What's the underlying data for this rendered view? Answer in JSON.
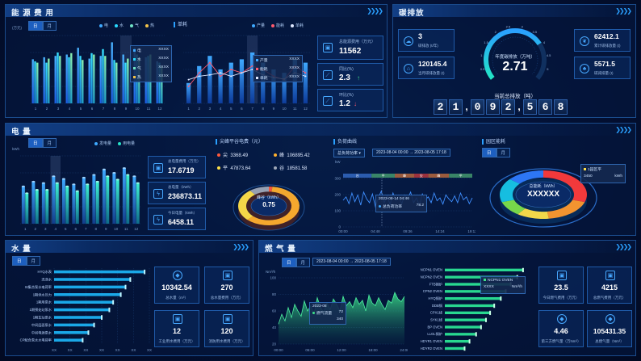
{
  "energy": {
    "title": "能 源 费 用",
    "toggle": [
      "日",
      "月"
    ],
    "sub_title": "费用",
    "y_unit": "(万元)",
    "legend": [
      {
        "label": "电",
        "color": "#3fa9ff"
      },
      {
        "label": "水",
        "color": "#29d9ff"
      },
      {
        "label": "气",
        "color": "#6fe3c6"
      },
      {
        "label": "热",
        "color": "#f3c34a"
      }
    ],
    "tooltip": [
      {
        "label": "电",
        "value": "XXXX"
      },
      {
        "label": "水",
        "value": "XXXX"
      },
      {
        "label": "气",
        "value": "XXXX"
      },
      {
        "label": "热",
        "value": "XXXX"
      }
    ],
    "chart_data": {
      "type": "bar",
      "categories": [
        "1",
        "2",
        "3",
        "4",
        "5",
        "6",
        "7",
        "8",
        "9",
        "10",
        "11",
        "12"
      ],
      "series": [
        {
          "name": "电",
          "values": [
            0.65,
            0.68,
            0.7,
            0.72,
            0.82,
            0.66,
            0.7,
            0.9,
            0.72,
            0.82,
            0.68,
            0.62
          ]
        },
        {
          "name": "水",
          "values": [
            0.62,
            0.6,
            0.75,
            0.68,
            0.7,
            0.74,
            0.8,
            0.64,
            0.6,
            0.72,
            0.7,
            0.6
          ]
        },
        {
          "name": "气",
          "values": [
            0.6,
            0.66,
            0.7,
            0.74,
            0.64,
            0.72,
            0.7,
            0.6,
            0.66,
            0.68,
            0.72,
            0.55
          ]
        }
      ],
      "ylim": [
        0,
        1
      ]
    }
  },
  "unit_consumption": {
    "sub_title": "单耗",
    "legend": [
      {
        "label": "产量",
        "color": "#3fa9ff"
      },
      {
        "label": "能耗",
        "color": "#ff5a6e"
      },
      {
        "label": "单耗",
        "color": "#dfe8ff"
      }
    ],
    "tooltip": [
      {
        "label": "产量",
        "value": "XXXX"
      },
      {
        "label": "能耗",
        "value": "XXXX"
      },
      {
        "label": "单耗",
        "value": "XXXX"
      }
    ],
    "chart_data": {
      "type": "bar",
      "categories": [
        "1",
        "2",
        "3",
        "4",
        "5",
        "6",
        "7",
        "8",
        "9",
        "10",
        "11",
        "12"
      ],
      "series": [
        {
          "name": "产量",
          "values": [
            0.3,
            0.55,
            0.7,
            0.5,
            0.6,
            0.65,
            0.75,
            0.6,
            0.5,
            0.45,
            0.65,
            0.6
          ]
        },
        {
          "name": "能耗",
          "values": [
            0.25,
            0.45,
            0.6,
            0.4,
            0.5,
            0.45,
            0.55,
            0.5,
            0.4,
            0.35,
            0.55,
            0.45
          ]
        },
        {
          "name": "单耗",
          "values": [
            0.35,
            0.4,
            0.42,
            0.45,
            0.4,
            0.45,
            0.5,
            0.42,
            0.38,
            0.36,
            0.45,
            0.4
          ]
        }
      ],
      "ylim": [
        0,
        1
      ]
    }
  },
  "energy_cards": [
    {
      "label": "总能源费用（万元）",
      "value": "11562",
      "icon": "wallet-icon"
    },
    {
      "label": "同比(%)",
      "value": "2.3",
      "trend": "↑",
      "icon": "trend-icon"
    },
    {
      "label": "环比(%)",
      "value": "1.2",
      "trend": "↓",
      "icon": "trend-icon"
    }
  ],
  "carbon": {
    "title": "碳排放",
    "left_cards": [
      {
        "value": "3",
        "label": "碳排放 (t/年)",
        "icon": "cloud-icon"
      },
      {
        "value": "120145.4",
        "label": "当月碳排放量 (t)",
        "icon": "factory-icon"
      }
    ],
    "right_cards": [
      {
        "value": "62412.1",
        "label": "累计碳排放量 (t)",
        "icon": "leaf-icon"
      },
      {
        "value": "5571.5",
        "label": "碳减排量 (t)",
        "icon": "tree-icon"
      }
    ],
    "gauge_label": "年度碳排放（万吨）",
    "gauge_value": "2.71",
    "gauge_fraction": 0.72,
    "gauge_ticks": [
      "0.5",
      "1",
      "1.5",
      "2",
      "2.5",
      "3",
      "3.5",
      "4",
      "4.5",
      "5"
    ],
    "total_label": "当前总排放（吨）",
    "digits": [
      "2",
      "1",
      ",",
      "0",
      "9",
      "2",
      ",",
      "5",
      "6",
      "8"
    ]
  },
  "power": {
    "title": "电 量",
    "toggle": [
      "日",
      "月"
    ],
    "y_unit": "kWh",
    "legend": [
      {
        "label": "发电量",
        "color": "#3fa9ff"
      },
      {
        "label": "用电量",
        "color": "#26e0c6"
      }
    ],
    "chart_data": {
      "type": "bar",
      "categories": [
        "1",
        "2",
        "3",
        "4",
        "5",
        "6",
        "7",
        "8",
        "9",
        "10",
        "11",
        "12"
      ],
      "series": [
        {
          "name": "发电量",
          "values": [
            0.55,
            0.62,
            0.6,
            0.7,
            0.66,
            0.58,
            0.68,
            0.72,
            0.8,
            0.75,
            0.82,
            0.7
          ]
        },
        {
          "name": "用电量",
          "values": [
            0.45,
            0.5,
            0.5,
            0.6,
            0.55,
            0.48,
            0.58,
            0.62,
            0.7,
            0.65,
            0.72,
            0.6
          ]
        }
      ],
      "ylim": [
        0,
        1
      ]
    },
    "cards": [
      {
        "label": "总电量费用（万元）",
        "value": "17.6719",
        "icon": "wallet-icon"
      },
      {
        "label": "总电量（kWh）",
        "value": "236873.11",
        "icon": "bolt-icon"
      },
      {
        "label": "今日电量（kWh）",
        "value": "6458.11",
        "icon": "bolt-icon"
      }
    ]
  },
  "peak_valley": {
    "title": "尖峰平谷电费（元）",
    "items": [
      {
        "label": "尖",
        "value": "3368.49",
        "color": "#ff5a3c"
      },
      {
        "label": "峰",
        "value": "106895.42",
        "color": "#ffb02e"
      },
      {
        "label": "平",
        "value": "47873.64",
        "color": "#ffe14a"
      },
      {
        "label": "谷",
        "value": "18581.58",
        "color": "#9fa8b8"
      }
    ],
    "donut_label": "峰谷（kWh）",
    "donut_value": "0.75",
    "chart_data": {
      "type": "pie",
      "categories": [
        "尖",
        "峰",
        "平",
        "谷"
      ],
      "values": [
        3368.49,
        106895.42,
        47873.64,
        18581.58
      ]
    }
  },
  "load_curve": {
    "title": "负荷曲线",
    "select": "总负荷功率",
    "date_from": "2023-08-04 00:00",
    "date_to": "2023-08-05 17:18",
    "y_unit": "kW",
    "y_ticks": [
      "300",
      "200",
      "100",
      "0"
    ],
    "x_ticks": [
      "00:00",
      "04:48",
      "09:36",
      "14:24",
      "19:12"
    ],
    "band_labels": [
      "谷",
      "平",
      "峰",
      "尖",
      "峰",
      "平"
    ],
    "tooltip_time": "2023-08-14  04:46",
    "tooltip_label": "总负荷功率",
    "tooltip_value": "78.2",
    "chart_data": {
      "type": "line",
      "series": [
        {
          "name": "总负荷功率",
          "values": [
            0.55,
            0.62,
            0.48,
            0.7,
            0.52,
            0.66,
            0.45,
            0.72,
            0.58,
            0.5,
            0.68,
            0.42,
            0.6,
            0.74,
            0.5,
            0.64,
            0.46,
            0.7,
            0.55,
            0.62,
            0.48,
            0.66,
            0.58,
            0.72,
            0.5,
            0.6,
            0.44,
            0.68,
            0.56,
            0.62,
            0.5,
            0.7,
            0.54,
            0.6,
            0.47,
            0.66,
            0.58,
            0.52,
            0.64,
            0.5,
            0.7,
            0.56,
            0.62,
            0.48,
            0.6
          ]
        }
      ],
      "ylim": [
        0,
        1
      ]
    }
  },
  "park_energy": {
    "title": "园区能耗",
    "toggle": [
      "日",
      "月"
    ],
    "center_label": "总能耗（kWh）",
    "center_value": "XXXXXX",
    "tooltip_label": "1园区平",
    "tooltip_value": "3450",
    "tooltip_unit": "kWh",
    "chart_data": {
      "type": "pie",
      "categories": [
        "A",
        "B",
        "C",
        "D",
        "E",
        "F"
      ],
      "values": [
        30,
        18,
        12,
        10,
        16,
        14
      ]
    },
    "colors": [
      "#ff3b3b",
      "#ff9a2e",
      "#ffe14a",
      "#7ee04a",
      "#17c6e8",
      "#2f7bff"
    ]
  },
  "water": {
    "title": "水 量",
    "toggle": [
      "日",
      "月"
    ],
    "chart_data": {
      "type": "bar",
      "categories": [
        "HYQ水表",
        "洗涤水",
        "SI集合泵水电荷率",
        "1期供水压力",
        "1期用泵水",
        "1期预处站泵水",
        "1期车站泵水",
        "中间层面泵水",
        "中间电源泵水",
        "CP配合泵水水电荷率"
      ],
      "values": [
        0.95,
        0.8,
        0.75,
        0.7,
        0.62,
        0.58,
        0.5,
        0.42,
        0.36,
        0.3
      ]
    },
    "x_ticks": [
      "XX",
      "XX",
      "XX",
      "XX",
      "XX",
      "XX",
      "XX"
    ],
    "cards": [
      {
        "value": "10342.54",
        "label": "总水量（m³）",
        "icon": "drop-icon"
      },
      {
        "value": "270",
        "label": "总水量费用（万元）",
        "icon": "wallet-icon"
      },
      {
        "value": "12",
        "label": "工业用水费用（万元）",
        "icon": "wallet-icon"
      },
      {
        "value": "120",
        "label": "消防用水费用（万元）",
        "icon": "wallet-icon"
      }
    ]
  },
  "gas": {
    "title": "燃 气 量",
    "toggle": [
      "日",
      "月"
    ],
    "date_from": "2023-08-04 00:00",
    "date_to": "2023-08-05 17:18",
    "y_unit": "Nm³/h",
    "y_ticks": [
      "100",
      "80",
      "60",
      "40",
      "20"
    ],
    "x_ticks": [
      "00:00",
      "06:00",
      "12:00",
      "18:00",
      "24:00"
    ],
    "tooltip_time": "2023-08",
    "tooltip_label": "燃气流量",
    "tooltip_value": "72",
    "tooltip_value2": "340",
    "chart_data": {
      "type": "area",
      "series": [
        {
          "name": "燃气流量",
          "values": [
            0.3,
            0.45,
            0.35,
            0.55,
            0.4,
            0.6,
            0.5,
            0.42,
            0.65,
            0.5,
            0.58,
            0.45,
            0.7,
            0.55,
            0.48,
            0.62,
            0.52,
            0.68,
            0.6,
            0.5,
            0.72,
            0.58,
            0.64,
            0.55,
            0.7,
            0.6,
            0.66,
            0.5,
            0.74,
            0.62,
            0.58,
            0.7,
            0.6,
            0.52,
            0.66,
            0.62,
            0.78,
            0.68,
            0.64,
            0.72
          ]
        }
      ],
      "ylim": [
        0,
        1
      ]
    },
    "bar_tooltip_label": "NCPN1 OVEN",
    "bar_tooltip_value": "XXXX",
    "bar_tooltip_unit": "Nm³/h",
    "bar_data": {
      "type": "bar",
      "categories": [
        "NCPN1 OVEN",
        "NCPN2 OVEN",
        "FTB锅炉",
        "CPN2 OVEN",
        "HYQ锅炉",
        "DDB锅",
        "CPX1线",
        "SYK1线",
        "BP OVEN",
        "LLGL锅炉",
        "HDYR1 OVEN",
        "HDYR2 OVEN"
      ],
      "values": [
        0.95,
        0.88,
        0.8,
        0.74,
        0.68,
        0.6,
        0.55,
        0.5,
        0.44,
        0.38,
        0.3,
        0.24
      ]
    },
    "cards": [
      {
        "value": "23.5",
        "label": "今日燃气费用（万元）",
        "icon": "wallet-icon"
      },
      {
        "value": "4215",
        "label": "总燃气费用（万元）",
        "icon": "wallet-icon"
      },
      {
        "value": "4.46",
        "label": "第三方燃气量（万Nm³）",
        "icon": "drop-icon"
      },
      {
        "value": "105431.35",
        "label": "总燃气量（Nm³）",
        "icon": "drop-icon"
      }
    ]
  }
}
